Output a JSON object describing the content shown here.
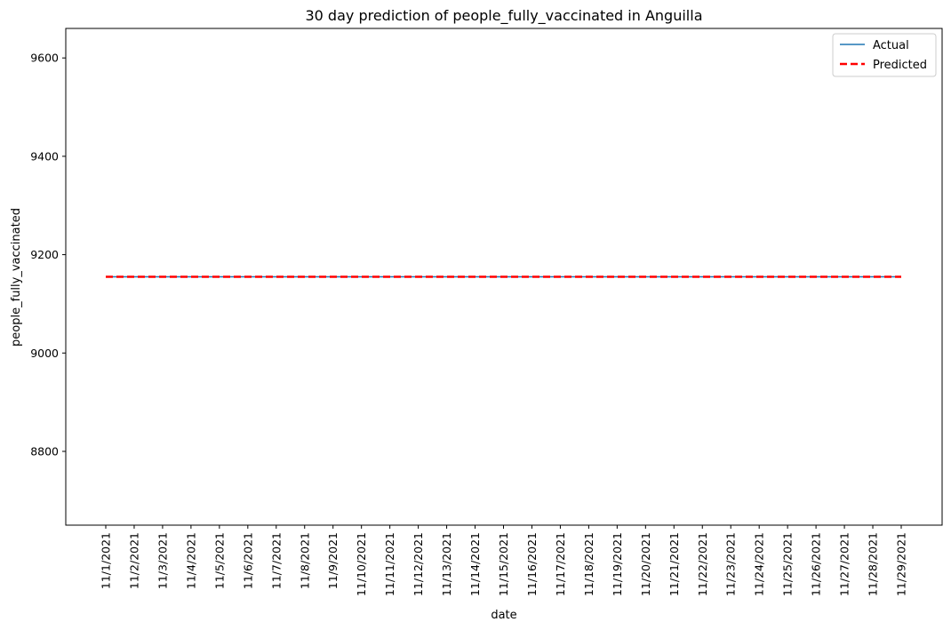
{
  "chart_data": {
    "type": "line",
    "title": "30 day prediction of people_fully_vaccinated in Anguilla",
    "xlabel": "date",
    "ylabel": "people_fully_vaccinated",
    "categories": [
      "11/1/2021",
      "11/2/2021",
      "11/3/2021",
      "11/4/2021",
      "11/5/2021",
      "11/6/2021",
      "11/7/2021",
      "11/8/2021",
      "11/9/2021",
      "11/10/2021",
      "11/11/2021",
      "11/12/2021",
      "11/13/2021",
      "11/14/2021",
      "11/15/2021",
      "11/16/2021",
      "11/17/2021",
      "11/18/2021",
      "11/19/2021",
      "11/20/2021",
      "11/21/2021",
      "11/22/2021",
      "11/23/2021",
      "11/24/2021",
      "11/25/2021",
      "11/26/2021",
      "11/27/2021",
      "11/28/2021",
      "11/29/2021"
    ],
    "ylim": [
      8650,
      9660
    ],
    "yticks": [
      8800,
      9000,
      9200,
      9400,
      9600
    ],
    "grid": false,
    "legend_position": "top-right",
    "series": [
      {
        "name": "Actual",
        "color": "#1f77b4",
        "style": "solid",
        "values": [
          9155,
          9155,
          9155,
          9155,
          9155,
          9155,
          9155,
          9155,
          9155,
          9155,
          9155,
          9155,
          9155,
          9155,
          9155,
          9155,
          9155,
          9155,
          9155,
          9155,
          9155,
          9155,
          9155,
          9155,
          9155,
          9155,
          9155,
          9155,
          9155
        ]
      },
      {
        "name": "Predicted",
        "color": "#ff0000",
        "style": "dashed",
        "values": [
          9155,
          9155,
          9155,
          9155,
          9155,
          9155,
          9155,
          9155,
          9155,
          9155,
          9155,
          9155,
          9155,
          9155,
          9155,
          9155,
          9155,
          9155,
          9155,
          9155,
          9155,
          9155,
          9155,
          9155,
          9155,
          9155,
          9155,
          9155,
          9155
        ]
      }
    ]
  }
}
